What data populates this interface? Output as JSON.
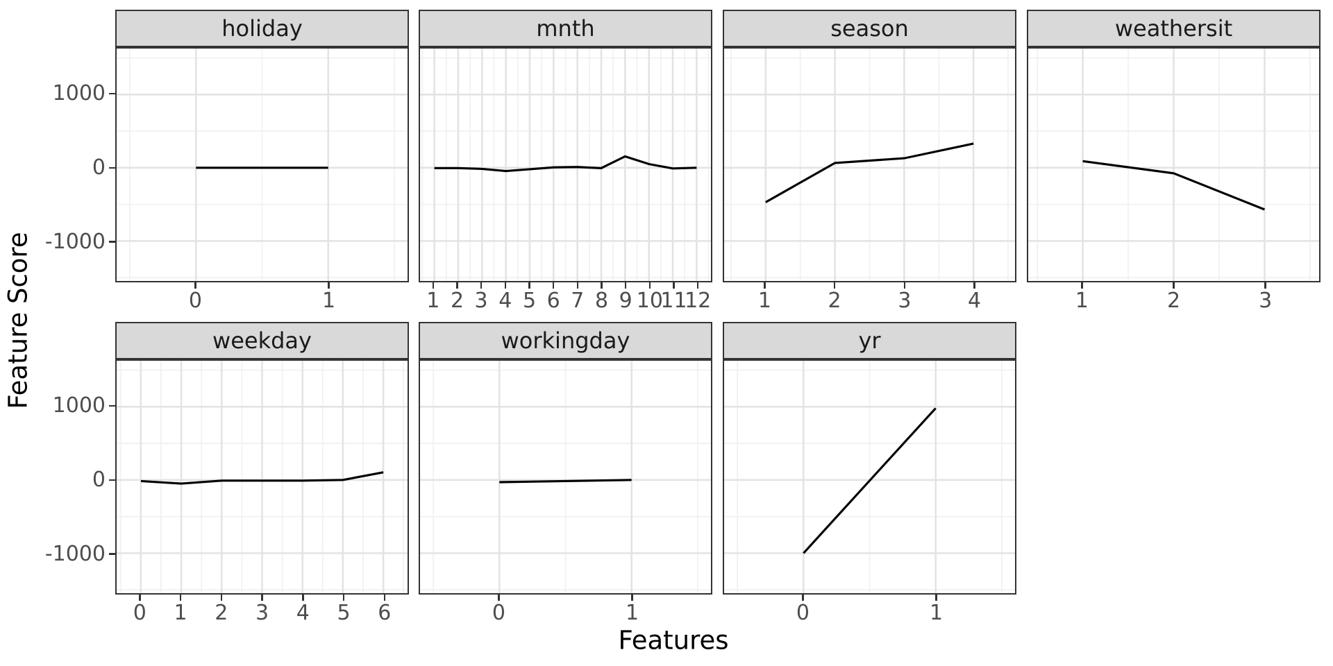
{
  "colors": {
    "line": "#000000",
    "strip_bg": "#D9D9D9",
    "strip_text": "#1A1A1A",
    "panel_border": "#333333",
    "grid_major": "#E3E3E3",
    "grid_minor": "#F1F1F1",
    "tick_mark": "#333333",
    "tick_text": "#4D4D4D",
    "axis_title": "#000000",
    "background": "#FFFFFF"
  },
  "chart_data": {
    "type": "line",
    "title": "",
    "xlabel": "Features",
    "ylabel": "Feature Score",
    "ylim": [
      -1546,
      1628
    ],
    "grid": true,
    "legend": false,
    "y_major_ticks": [
      1000,
      0,
      -1000
    ],
    "y_tick_labels": [
      "1000",
      "0",
      "-1000"
    ],
    "y_minor_gridlines": [
      1500,
      500,
      -500,
      -1500
    ],
    "facets": [
      {
        "label": "holiday",
        "x": [
          0,
          1
        ],
        "y": [
          0,
          0
        ]
      },
      {
        "label": "mnth",
        "x": [
          1,
          2,
          3,
          4,
          5,
          6,
          7,
          8,
          9,
          10,
          11,
          12
        ],
        "y": [
          -5,
          -5,
          -15,
          -45,
          -20,
          5,
          10,
          -5,
          155,
          50,
          -10,
          0
        ]
      },
      {
        "label": "season",
        "x": [
          1,
          2,
          3,
          4
        ],
        "y": [
          -470,
          65,
          130,
          330
        ]
      },
      {
        "label": "weathersit",
        "x": [
          1,
          2,
          3
        ],
        "y": [
          90,
          -75,
          -570
        ]
      },
      {
        "label": "weekday",
        "x": [
          0,
          1,
          2,
          3,
          4,
          5,
          6
        ],
        "y": [
          -15,
          -50,
          -10,
          -10,
          -10,
          0,
          105
        ]
      },
      {
        "label": "workingday",
        "x": [
          0,
          1
        ],
        "y": [
          -30,
          0
        ]
      },
      {
        "label": "yr",
        "x": [
          0,
          1
        ],
        "y": [
          -1000,
          980
        ]
      }
    ]
  }
}
